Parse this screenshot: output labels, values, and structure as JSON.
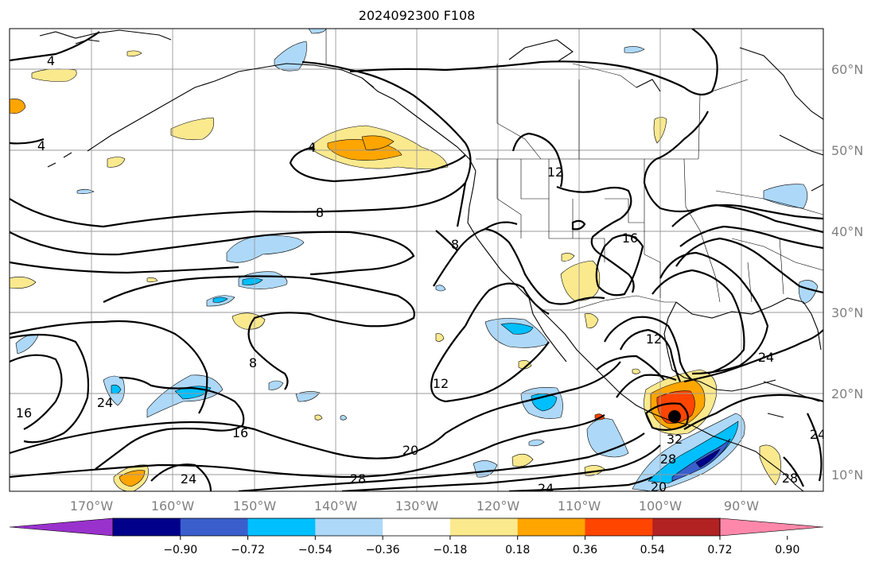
{
  "title": "2024092300 F108",
  "map": {
    "lon_labels": [
      "170°W",
      "160°W",
      "150°W",
      "140°W",
      "130°W",
      "120°W",
      "110°W",
      "100°W",
      "90°W"
    ],
    "lat_labels": [
      "60°N",
      "50°N",
      "40°N",
      "30°N",
      "20°N",
      "10°N"
    ],
    "contour_labels": [
      "4",
      "4",
      "4",
      "8",
      "8",
      "8",
      "12",
      "12",
      "12",
      "16",
      "16",
      "16",
      "20",
      "20",
      "24",
      "24",
      "24",
      "24",
      "24",
      "28",
      "28",
      "28",
      "32"
    ],
    "marker": {
      "lon": -99,
      "lat": 17.3,
      "label": ""
    }
  },
  "colorbar": {
    "colors": [
      "#9932cc",
      "#00008b",
      "#3a5fcd",
      "#00bfff",
      "#add8f8",
      "#ffffff",
      "#fbe98e",
      "#ffa500",
      "#ff4500",
      "#b22222",
      "#ff88aa"
    ],
    "ticks": [
      "−0.90",
      "−0.72",
      "−0.54",
      "−0.36",
      "−0.18",
      "0.18",
      "0.36",
      "0.54",
      "0.72",
      "0.90"
    ]
  }
}
